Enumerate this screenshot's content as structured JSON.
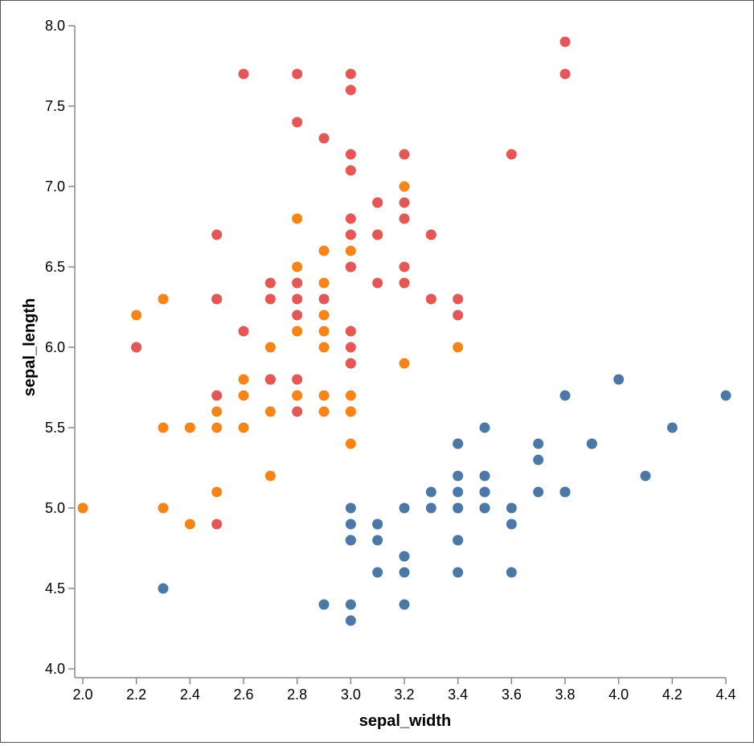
{
  "chart_data": {
    "type": "scatter",
    "xlabel": "sepal_width",
    "ylabel": "sepal_length",
    "xlim": [
      2.0,
      4.4
    ],
    "ylim": [
      4.0,
      8.0
    ],
    "x_ticks": [
      "2.0",
      "2.2",
      "2.4",
      "2.6",
      "2.8",
      "3.0",
      "3.2",
      "3.4",
      "3.6",
      "3.8",
      "4.0",
      "4.2",
      "4.4"
    ],
    "y_ticks": [
      "4.0",
      "4.5",
      "5.0",
      "5.5",
      "6.0",
      "6.5",
      "7.0",
      "7.5",
      "8.0"
    ],
    "grid": false,
    "legend": "none",
    "series": [
      {
        "color": "#4c78a8",
        "points": [
          [
            3.5,
            5.1
          ],
          [
            3.0,
            4.9
          ],
          [
            3.2,
            4.7
          ],
          [
            3.1,
            4.6
          ],
          [
            3.6,
            5.0
          ],
          [
            3.9,
            5.4
          ],
          [
            3.4,
            4.6
          ],
          [
            3.4,
            5.0
          ],
          [
            2.9,
            4.4
          ],
          [
            3.1,
            4.9
          ],
          [
            3.7,
            5.4
          ],
          [
            3.4,
            4.8
          ],
          [
            3.0,
            4.8
          ],
          [
            3.0,
            4.3
          ],
          [
            4.0,
            5.8
          ],
          [
            4.4,
            5.7
          ],
          [
            3.9,
            5.4
          ],
          [
            3.5,
            5.1
          ],
          [
            3.8,
            5.7
          ],
          [
            3.8,
            5.1
          ],
          [
            3.4,
            5.4
          ],
          [
            3.7,
            5.1
          ],
          [
            3.6,
            4.6
          ],
          [
            3.3,
            5.1
          ],
          [
            3.4,
            4.8
          ],
          [
            3.0,
            5.0
          ],
          [
            3.4,
            5.0
          ],
          [
            3.5,
            5.2
          ],
          [
            3.4,
            5.2
          ],
          [
            3.2,
            4.7
          ],
          [
            3.1,
            4.8
          ],
          [
            3.4,
            5.4
          ],
          [
            4.1,
            5.2
          ],
          [
            4.2,
            5.5
          ],
          [
            3.1,
            4.9
          ],
          [
            3.2,
            5.0
          ],
          [
            3.5,
            5.5
          ],
          [
            3.6,
            4.9
          ],
          [
            3.0,
            4.4
          ],
          [
            3.4,
            5.1
          ],
          [
            3.5,
            5.0
          ],
          [
            2.3,
            4.5
          ],
          [
            3.2,
            4.4
          ],
          [
            3.5,
            5.0
          ],
          [
            3.8,
            5.1
          ],
          [
            3.0,
            4.8
          ],
          [
            3.8,
            5.1
          ],
          [
            3.2,
            4.6
          ],
          [
            3.7,
            5.3
          ],
          [
            3.3,
            5.0
          ]
        ]
      },
      {
        "color": "#f58518",
        "points": [
          [
            3.2,
            7.0
          ],
          [
            3.2,
            6.4
          ],
          [
            3.1,
            6.9
          ],
          [
            2.3,
            5.5
          ],
          [
            2.8,
            6.5
          ],
          [
            2.8,
            5.7
          ],
          [
            3.3,
            6.3
          ],
          [
            2.4,
            4.9
          ],
          [
            2.9,
            6.6
          ],
          [
            2.7,
            5.2
          ],
          [
            2.0,
            5.0
          ],
          [
            3.0,
            5.9
          ],
          [
            2.2,
            6.0
          ],
          [
            2.9,
            6.1
          ],
          [
            2.9,
            5.6
          ],
          [
            3.1,
            6.7
          ],
          [
            3.0,
            5.6
          ],
          [
            2.7,
            5.8
          ],
          [
            2.2,
            6.2
          ],
          [
            2.5,
            5.6
          ],
          [
            3.2,
            5.9
          ],
          [
            2.8,
            6.1
          ],
          [
            2.5,
            6.3
          ],
          [
            2.8,
            6.1
          ],
          [
            2.9,
            6.4
          ],
          [
            3.0,
            6.6
          ],
          [
            2.8,
            6.8
          ],
          [
            3.0,
            6.7
          ],
          [
            2.9,
            6.0
          ],
          [
            2.6,
            5.7
          ],
          [
            2.4,
            5.5
          ],
          [
            2.4,
            5.5
          ],
          [
            2.7,
            5.8
          ],
          [
            2.7,
            6.0
          ],
          [
            3.0,
            5.4
          ],
          [
            3.4,
            6.0
          ],
          [
            3.1,
            6.7
          ],
          [
            2.3,
            6.3
          ],
          [
            3.0,
            5.6
          ],
          [
            2.5,
            5.5
          ],
          [
            2.6,
            5.5
          ],
          [
            3.0,
            6.1
          ],
          [
            2.6,
            5.8
          ],
          [
            2.3,
            5.0
          ],
          [
            2.7,
            5.6
          ],
          [
            3.0,
            5.7
          ],
          [
            2.9,
            5.7
          ],
          [
            2.9,
            6.2
          ],
          [
            2.5,
            5.1
          ],
          [
            2.8,
            5.7
          ]
        ]
      },
      {
        "color": "#e45756",
        "points": [
          [
            3.3,
            6.3
          ],
          [
            2.7,
            5.8
          ],
          [
            3.0,
            7.1
          ],
          [
            2.9,
            6.3
          ],
          [
            3.0,
            6.5
          ],
          [
            3.0,
            7.6
          ],
          [
            2.5,
            4.9
          ],
          [
            2.9,
            7.3
          ],
          [
            2.5,
            6.7
          ],
          [
            3.6,
            7.2
          ],
          [
            3.2,
            6.5
          ],
          [
            2.7,
            6.4
          ],
          [
            3.0,
            6.8
          ],
          [
            2.5,
            5.7
          ],
          [
            2.8,
            5.8
          ],
          [
            3.2,
            6.4
          ],
          [
            3.0,
            6.5
          ],
          [
            3.8,
            7.7
          ],
          [
            2.6,
            7.7
          ],
          [
            2.2,
            6.0
          ],
          [
            3.2,
            6.9
          ],
          [
            2.8,
            5.6
          ],
          [
            2.8,
            7.7
          ],
          [
            2.7,
            6.3
          ],
          [
            3.3,
            6.7
          ],
          [
            3.2,
            7.2
          ],
          [
            2.8,
            6.2
          ],
          [
            3.0,
            6.1
          ],
          [
            2.8,
            6.4
          ],
          [
            3.0,
            7.2
          ],
          [
            2.8,
            7.4
          ],
          [
            3.8,
            7.9
          ],
          [
            2.8,
            6.4
          ],
          [
            2.8,
            6.3
          ],
          [
            2.6,
            6.1
          ],
          [
            3.0,
            7.7
          ],
          [
            3.4,
            6.3
          ],
          [
            3.1,
            6.4
          ],
          [
            3.0,
            6.0
          ],
          [
            3.1,
            6.9
          ],
          [
            3.1,
            6.7
          ],
          [
            3.1,
            6.9
          ],
          [
            2.7,
            5.8
          ],
          [
            3.2,
            6.8
          ],
          [
            3.3,
            6.7
          ],
          [
            3.0,
            6.7
          ],
          [
            2.5,
            6.3
          ],
          [
            3.0,
            6.5
          ],
          [
            3.4,
            6.2
          ],
          [
            3.0,
            5.9
          ]
        ]
      }
    ]
  }
}
